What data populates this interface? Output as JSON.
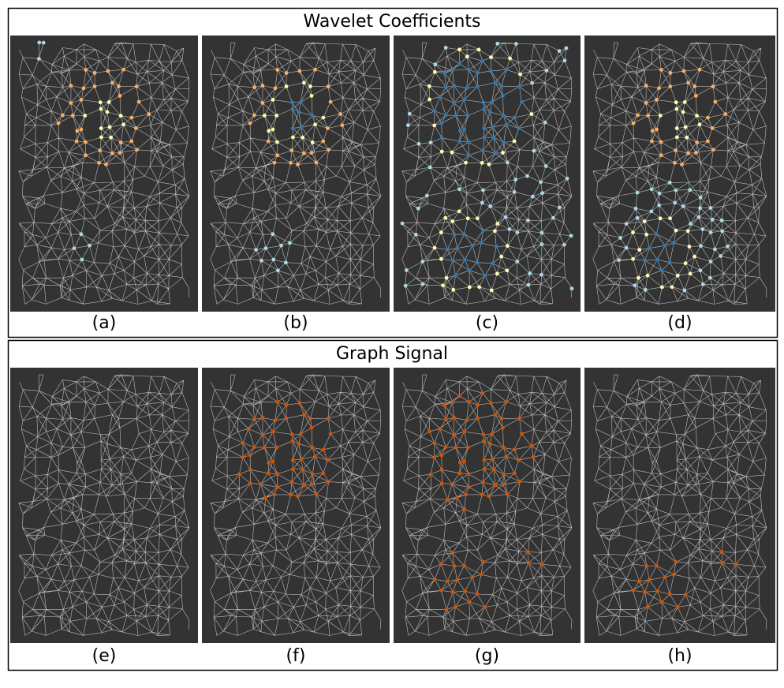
{
  "panels": [
    {
      "title": "Wavelet Coefficients",
      "labels": [
        "(a)",
        "(b)",
        "(c)",
        "(d)"
      ]
    },
    {
      "title": "Graph Signal",
      "labels": [
        "(e)",
        "(f)",
        "(g)",
        "(h)"
      ]
    }
  ]
}
